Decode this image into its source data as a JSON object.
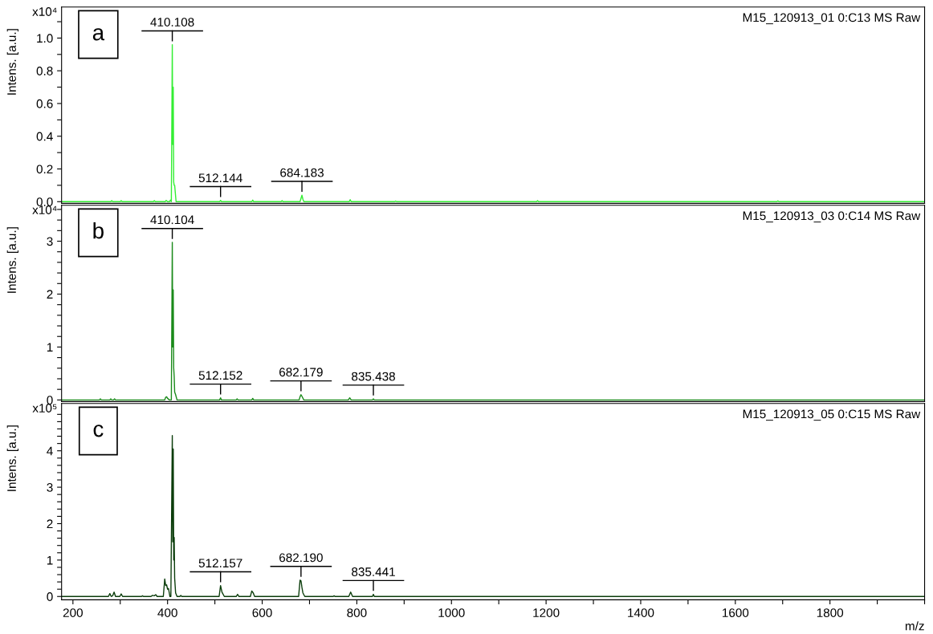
{
  "chart_data": [
    {
      "type": "line",
      "title": "M15_120913_01 0:C13 MS Raw",
      "ylabel": "Intens. [a.u.]",
      "tick_labels": "y",
      "grid": false,
      "xlim": [
        176,
        2000
      ],
      "ylim": [
        -0.01,
        1.19
      ],
      "yticks": [
        {
          "value": 0,
          "label": "0.0"
        },
        {
          "value": 0.1,
          "label": null
        },
        {
          "value": 0.2,
          "label": "0.2"
        },
        {
          "value": 0.3,
          "label": null
        },
        {
          "value": 0.4,
          "label": "0.4"
        },
        {
          "value": 0.5,
          "label": null
        },
        {
          "value": 0.6,
          "label": "0.6"
        },
        {
          "value": 0.7,
          "label": null
        },
        {
          "value": 0.8,
          "label": "0.8"
        },
        {
          "value": 0.9,
          "label": null
        },
        {
          "value": 1.0,
          "label": "1.0"
        },
        {
          "value": 1.1,
          "label": null
        }
      ],
      "series": [
        {
          "color": "#33ee33",
          "x": [
            176,
            280,
            282,
            284,
            300,
            302,
            304,
            370,
            372,
            374,
            395,
            397,
            400,
            404,
            406,
            408,
            410,
            411,
            412,
            413,
            414,
            415,
            418,
            510,
            512,
            514,
            578,
            580,
            582,
            640,
            642,
            644,
            680,
            682,
            684,
            686,
            688,
            784,
            786,
            788,
            880,
            882,
            884,
            1180,
            1182,
            1184,
            1688,
            1690,
            1692,
            2000
          ],
          "values": [
            0,
            0,
            0.006,
            0,
            0,
            0.006,
            0,
            0,
            0.006,
            0,
            0,
            0.008,
            0,
            0,
            0.01,
            0,
            0.96,
            0.35,
            0.7,
            0.12,
            0.1,
            0.1,
            0,
            0,
            0.008,
            0,
            0,
            0.01,
            0,
            0,
            0.006,
            0,
            0,
            0.02,
            0.04,
            0.015,
            0,
            0,
            0.012,
            0,
            0,
            0.004,
            0,
            0,
            0.006,
            0,
            0,
            0.005,
            0,
            0
          ]
        }
      ],
      "annotations": [
        "x10⁴",
        "a",
        {
          "text": "410.108",
          "x": 410,
          "y": 0.96
        },
        {
          "text": "512.144",
          "x": 512,
          "y": 0.008
        },
        {
          "text": "684.183",
          "x": 684,
          "y": 0.04
        }
      ]
    },
    {
      "type": "line",
      "title": "M15_120913_03 0:C14 MS Raw",
      "ylabel": "Intens. [a.u.]",
      "tick_labels": "y",
      "grid": false,
      "xlim": [
        176,
        2000
      ],
      "ylim": [
        -0.03,
        3.68
      ],
      "yticks": [
        0,
        {
          "value": 0.2,
          "label": null
        },
        {
          "value": 0.4,
          "label": null
        },
        {
          "value": 0.6,
          "label": null
        },
        {
          "value": 0.8,
          "label": null
        },
        1,
        {
          "value": 1.2,
          "label": null
        },
        {
          "value": 1.4,
          "label": null
        },
        {
          "value": 1.6,
          "label": null
        },
        {
          "value": 1.8,
          "label": null
        },
        2,
        {
          "value": 2.2,
          "label": null
        },
        {
          "value": 2.4,
          "label": null
        },
        {
          "value": 2.6,
          "label": null
        },
        {
          "value": 2.8,
          "label": null
        },
        3,
        {
          "value": 3.2,
          "label": null
        },
        {
          "value": 3.4,
          "label": null
        },
        {
          "value": 3.6,
          "label": null
        }
      ],
      "series": [
        {
          "color": "#1a8a1a",
          "x": [
            176,
            256,
            258,
            260,
            278,
            280,
            282,
            286,
            288,
            290,
            394,
            396,
            398,
            400,
            404,
            408,
            410,
            411,
            412,
            413,
            414,
            415,
            417,
            420,
            510,
            512,
            514,
            545,
            547,
            549,
            578,
            580,
            582,
            678,
            680,
            682,
            684,
            688,
            782,
            785,
            788,
            833,
            835,
            837,
            2000
          ],
          "values": [
            0,
            0,
            0.02,
            0,
            0,
            0.02,
            0,
            0,
            0.02,
            0,
            0,
            0.05,
            0.06,
            0.03,
            0,
            0,
            2.98,
            1.0,
            2.08,
            0.6,
            0.45,
            0.15,
            0.1,
            0,
            0,
            0.04,
            0,
            0,
            0.02,
            0,
            0,
            0.03,
            0,
            0,
            0.06,
            0.1,
            0.07,
            0,
            0,
            0.04,
            0,
            0,
            0.02,
            0,
            0
          ]
        }
      ],
      "annotations": [
        "x10⁴",
        "b",
        {
          "text": "410.104",
          "x": 410,
          "y": 2.98
        },
        {
          "text": "512.152",
          "x": 512,
          "y": 0.04
        },
        {
          "text": "682.179",
          "x": 682,
          "y": 0.1
        },
        {
          "text": "835.438",
          "x": 835,
          "y": 0.02
        }
      ]
    },
    {
      "type": "line",
      "title": "M15_120913_05 0:C15 MS Raw",
      "ylabel": "Intens. [a.u.]",
      "xlabel": "m/z",
      "grid": false,
      "xlim": [
        176,
        2000
      ],
      "ylim": [
        -0.09,
        5.3
      ],
      "xticks": [
        200,
        {
          "value": 300,
          "label": null
        },
        400,
        {
          "value": 500,
          "label": null
        },
        600,
        {
          "value": 700,
          "label": null
        },
        800,
        {
          "value": 900,
          "label": null
        },
        1000,
        {
          "value": 1100,
          "label": null
        },
        1200,
        {
          "value": 1300,
          "label": null
        },
        1400,
        {
          "value": 1500,
          "label": null
        },
        1600,
        {
          "value": 1700,
          "label": null
        },
        1800,
        {
          "value": 1900,
          "label": null
        },
        {
          "value": 2000,
          "label": null
        }
      ],
      "yticks": [
        0,
        {
          "value": 0.2,
          "label": null
        },
        {
          "value": 0.4,
          "label": null
        },
        {
          "value": 0.6,
          "label": null
        },
        {
          "value": 0.8,
          "label": null
        },
        1,
        {
          "value": 1.2,
          "label": null
        },
        {
          "value": 1.4,
          "label": null
        },
        {
          "value": 1.6,
          "label": null
        },
        {
          "value": 1.8,
          "label": null
        },
        2,
        {
          "value": 2.2,
          "label": null
        },
        {
          "value": 2.4,
          "label": null
        },
        {
          "value": 2.6,
          "label": null
        },
        {
          "value": 2.8,
          "label": null
        },
        3,
        {
          "value": 3.2,
          "label": null
        },
        {
          "value": 3.4,
          "label": null
        },
        {
          "value": 3.6,
          "label": null
        },
        {
          "value": 3.8,
          "label": null
        },
        4,
        {
          "value": 4.2,
          "label": null
        },
        {
          "value": 4.4,
          "label": null
        },
        {
          "value": 4.6,
          "label": null
        },
        {
          "value": 4.8,
          "label": null
        },
        {
          "value": 5,
          "label": null
        }
      ],
      "series": [
        {
          "color": "#0b3d0b",
          "x": [
            176,
            275,
            278,
            281,
            284,
            287,
            290,
            299,
            302,
            305,
            345,
            347,
            349,
            365,
            368,
            372,
            375,
            378,
            391,
            394,
            396,
            398,
            400,
            402,
            405,
            407,
            410,
            411,
            412,
            413,
            414,
            415,
            417,
            420,
            426,
            428,
            430,
            509,
            512,
            515,
            520,
            545,
            548,
            551,
            575,
            578,
            581,
            584,
            677,
            680,
            682,
            684,
            686,
            690,
            750,
            752,
            754,
            783,
            787,
            791,
            833,
            835,
            837,
            2000
          ],
          "values": [
            0,
            0,
            0.08,
            0,
            0.02,
            0.12,
            0,
            0,
            0.07,
            0,
            0,
            0.02,
            0,
            0,
            0.03,
            0.02,
            0.05,
            0,
            0,
            0.48,
            0.3,
            0.32,
            0.2,
            0.22,
            0,
            0,
            4.42,
            1.5,
            4.05,
            1.0,
            1.62,
            0.5,
            0.1,
            0,
            0,
            0.03,
            0,
            0,
            0.3,
            0.12,
            0,
            0,
            0.06,
            0,
            0,
            0.15,
            0.1,
            0,
            0,
            0.45,
            0.43,
            0.25,
            0.1,
            0,
            0,
            0.02,
            0,
            0,
            0.12,
            0,
            0,
            0.06,
            0,
            0
          ]
        }
      ],
      "annotations": [
        "x10⁵",
        "c",
        {
          "text": "512.157",
          "x": 512,
          "y": 0.3
        },
        {
          "text": "682.190",
          "x": 682,
          "y": 0.45
        },
        {
          "text": "835.441",
          "x": 835,
          "y": 0.06
        }
      ]
    }
  ]
}
